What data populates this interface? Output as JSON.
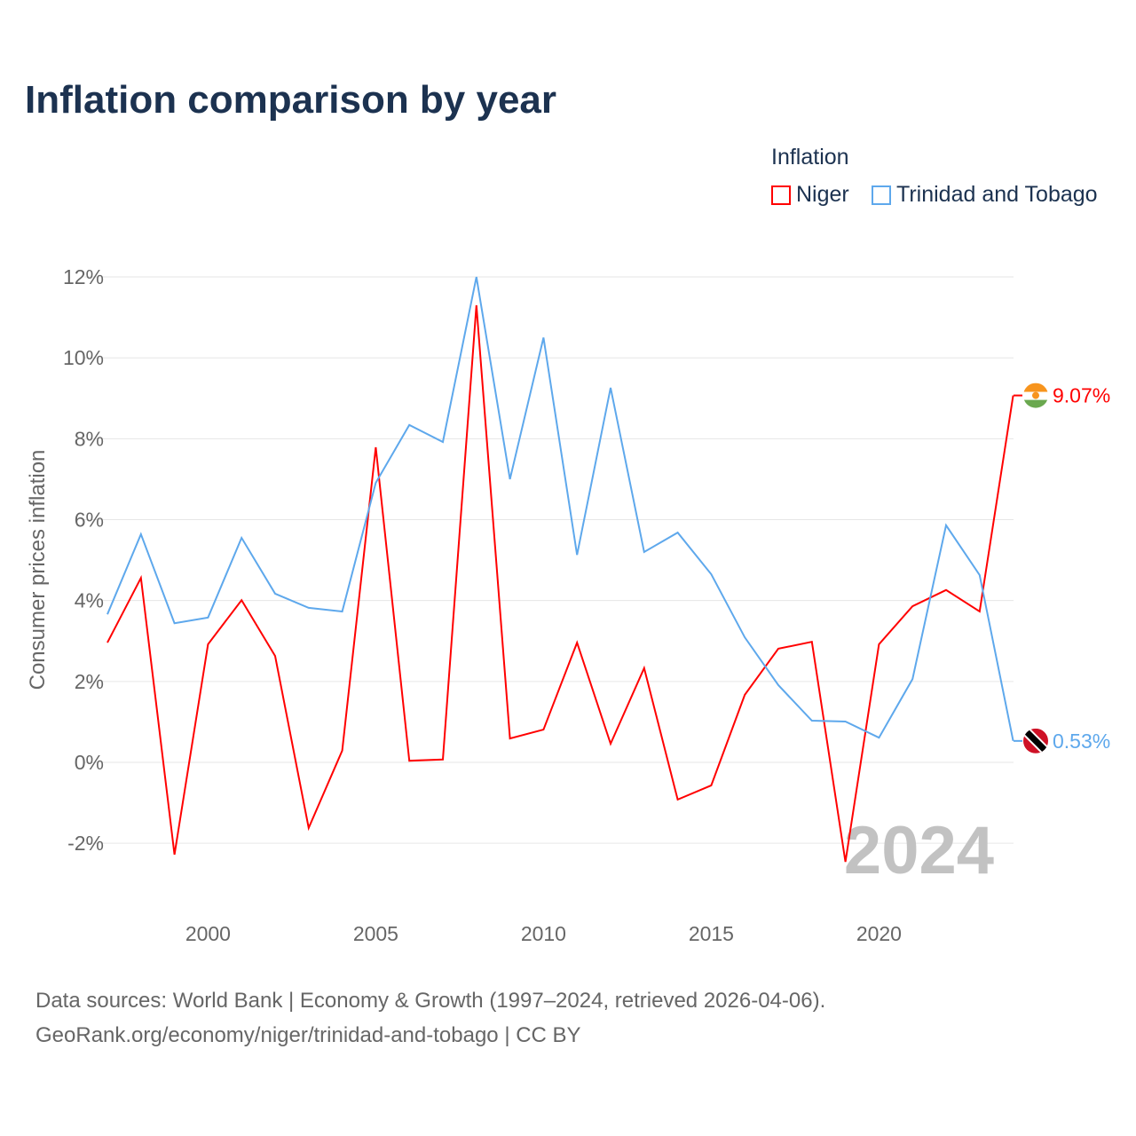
{
  "title": "Inflation comparison by year",
  "legend": {
    "title": "Inflation",
    "items": [
      {
        "name": "Niger",
        "color": "#ff0000"
      },
      {
        "name": "Trinidad and Tobago",
        "color": "#5ea8ec"
      }
    ]
  },
  "source": {
    "line1": "Data sources: World Bank | Economy & Growth (1997–2024, retrieved 2026-04-06).",
    "line2": "GeoRank.org/economy/niger/trinidad-and-tobago | CC BY"
  },
  "chart_data": {
    "type": "line",
    "title": "Inflation comparison by year",
    "ylabel": "Consumer prices inflation",
    "xlabel": "",
    "ylim": [
      -2,
      12
    ],
    "xlim": [
      1997,
      2024
    ],
    "yticks": [
      -2,
      0,
      2,
      4,
      6,
      8,
      10,
      12
    ],
    "ytick_labels": [
      "-2%",
      "0%",
      "2%",
      "4%",
      "6%",
      "8%",
      "10%",
      "12%"
    ],
    "xticks": [
      2000,
      2005,
      2010,
      2015,
      2020
    ],
    "xtick_labels": [
      "2000",
      "2005",
      "2010",
      "2015",
      "2020"
    ],
    "year_label": "2024",
    "grid": true,
    "x": [
      1997,
      1998,
      1999,
      2000,
      2001,
      2002,
      2003,
      2004,
      2005,
      2006,
      2007,
      2008,
      2009,
      2010,
      2011,
      2012,
      2013,
      2014,
      2015,
      2016,
      2017,
      2018,
      2019,
      2020,
      2021,
      2022,
      2023,
      2024
    ],
    "series": [
      {
        "name": "Niger",
        "color": "#ff0000",
        "end_label": "9.07%",
        "values": [
          2.96,
          4.56,
          -2.28,
          2.92,
          4.01,
          2.63,
          -1.62,
          0.29,
          7.79,
          0.04,
          0.07,
          11.3,
          0.59,
          0.81,
          2.96,
          0.46,
          2.33,
          -0.92,
          -0.57,
          1.67,
          2.81,
          2.98,
          -2.46,
          2.92,
          3.86,
          4.26,
          3.73,
          9.07
        ]
      },
      {
        "name": "Trinidad and Tobago",
        "color": "#5ea8ec",
        "end_label": "0.53%",
        "values": [
          3.66,
          5.64,
          3.44,
          3.58,
          5.55,
          4.17,
          3.82,
          3.73,
          6.91,
          8.34,
          7.92,
          12.0,
          7.0,
          10.5,
          5.13,
          9.26,
          5.2,
          5.68,
          4.65,
          3.09,
          1.91,
          1.03,
          1.01,
          0.61,
          2.06,
          5.86,
          4.63,
          0.53
        ]
      }
    ]
  }
}
